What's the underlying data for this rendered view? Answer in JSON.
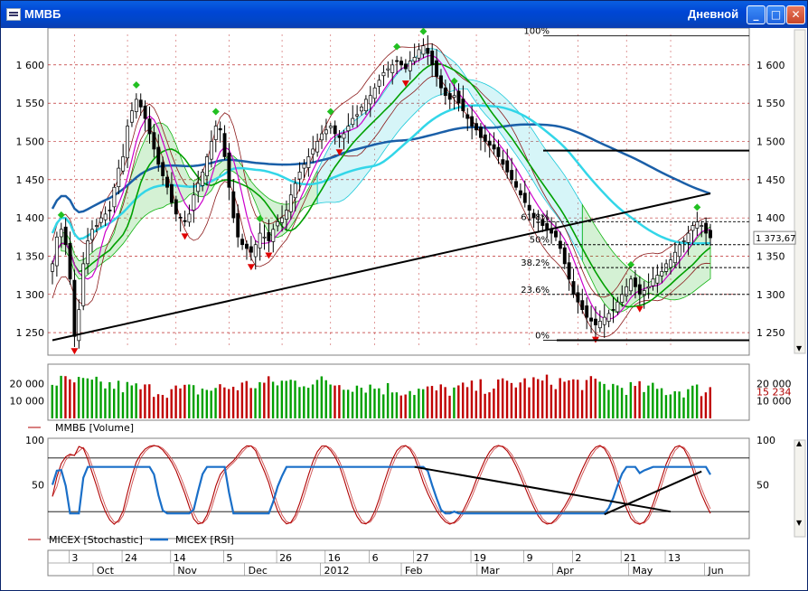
{
  "window": {
    "title": "ММВБ",
    "subtitle": "Дневной",
    "buttons": {
      "minimize": "_",
      "maximize": "□",
      "close": "✕"
    }
  },
  "colors": {
    "grid": "#b00000",
    "bull": "#00a000",
    "bear": "#c00000",
    "ma_dark": "#1a5fa8",
    "ma_light": "#33d6e8",
    "ma_green": "#00a000",
    "magenta": "#cc00cc",
    "cloud_green": "#11b311",
    "cloud_cyan": "#19c9d9",
    "rsi": "#1a6fc8",
    "stoch": "#b00000"
  },
  "chart_data": [
    {
      "panel": "price",
      "type": "candlestick",
      "instrument": "ММВБ",
      "last_value_label": "1 373,67",
      "ylim": [
        1230,
        1640
      ],
      "yticks": [
        1250,
        1300,
        1350,
        1400,
        1450,
        1500,
        1550,
        1600
      ],
      "ytick_labels": [
        "1 250",
        "1 300",
        "1 350",
        "1 400",
        "1 450",
        "1 500",
        "1 550",
        "1 600"
      ],
      "x_count": 150,
      "close": [
        1340,
        1375,
        1385,
        1365,
        1320,
        1245,
        1280,
        1340,
        1370,
        1385,
        1390,
        1400,
        1405,
        1410,
        1440,
        1465,
        1480,
        1520,
        1540,
        1555,
        1545,
        1530,
        1510,
        1490,
        1470,
        1455,
        1440,
        1420,
        1405,
        1400,
        1395,
        1405,
        1430,
        1445,
        1460,
        1480,
        1500,
        1520,
        1515,
        1480,
        1440,
        1400,
        1375,
        1365,
        1360,
        1355,
        1365,
        1380,
        1375,
        1370,
        1385,
        1395,
        1400,
        1410,
        1430,
        1445,
        1460,
        1470,
        1480,
        1490,
        1500,
        1510,
        1515,
        1520,
        1510,
        1505,
        1510,
        1520,
        1530,
        1535,
        1545,
        1555,
        1560,
        1570,
        1580,
        1590,
        1595,
        1600,
        1605,
        1600,
        1595,
        1605,
        1610,
        1620,
        1625,
        1615,
        1600,
        1585,
        1570,
        1560,
        1555,
        1560,
        1550,
        1540,
        1530,
        1520,
        1515,
        1505,
        1500,
        1495,
        1490,
        1480,
        1470,
        1460,
        1450,
        1440,
        1430,
        1420,
        1410,
        1400,
        1395,
        1390,
        1385,
        1380,
        1375,
        1360,
        1340,
        1320,
        1300,
        1290,
        1280,
        1270,
        1265,
        1260,
        1265,
        1270,
        1275,
        1280,
        1290,
        1300,
        1310,
        1320,
        1310,
        1300,
        1305,
        1310,
        1320,
        1325,
        1330,
        1340,
        1345,
        1355,
        1365,
        1370,
        1380,
        1390,
        1395,
        1390,
        1380,
        1374
      ],
      "fib_levels": [
        {
          "label": "100%",
          "value": 1638
        },
        {
          "label": "61.8%",
          "value": 1395
        },
        {
          "label": "50%",
          "value": 1365
        },
        {
          "label": "38.2%",
          "value": 1335
        },
        {
          "label": "23.6%",
          "value": 1300
        },
        {
          "label": "0%",
          "value": 1240
        }
      ],
      "horizontal_lines": [
        1488,
        1240
      ],
      "trendline": {
        "from": [
          0,
          1240
        ],
        "to": [
          149,
          1432
        ]
      }
    },
    {
      "panel": "volume",
      "type": "bar",
      "legend": "ММВБ [Volume]",
      "last_value_label": "15 234",
      "ylim": [
        0,
        30000
      ],
      "yticks": [
        10000,
        20000
      ],
      "ytick_labels": [
        "10 000",
        "20 000"
      ]
    },
    {
      "panel": "oscillator",
      "type": "line",
      "ylim": [
        0,
        100
      ],
      "yticks": [
        50,
        100
      ],
      "ytick_labels": [
        "50",
        "100"
      ],
      "bands": [
        20,
        80
      ],
      "series": [
        {
          "name": "MICEX [Stochastic]",
          "color": "#b00000"
        },
        {
          "name": "MICEX [RSI]",
          "color": "#1a6fc8"
        }
      ],
      "trendlines": [
        {
          "from": [
            82,
            70
          ],
          "to": [
            140,
            20
          ]
        },
        {
          "from": [
            125,
            17
          ],
          "to": [
            147,
            65
          ]
        }
      ]
    }
  ],
  "x_axis": {
    "days": [
      {
        "label": "3",
        "idx": 5
      },
      {
        "label": "24",
        "idx": 17
      },
      {
        "label": "14",
        "idx": 28
      },
      {
        "label": "5",
        "idx": 40
      },
      {
        "label": "26",
        "idx": 52
      },
      {
        "label": "16",
        "idx": 63
      },
      {
        "label": "6",
        "idx": 73
      },
      {
        "label": "27",
        "idx": 83
      },
      {
        "label": "19",
        "idx": 96
      },
      {
        "label": "9",
        "idx": 108
      },
      {
        "label": "2",
        "idx": 119
      },
      {
        "label": "21",
        "idx": 130
      },
      {
        "label": "13",
        "idx": 140
      }
    ],
    "months": [
      {
        "label": "Oct",
        "idx": 5
      },
      {
        "label": "Nov",
        "idx": 21
      },
      {
        "label": "Dec",
        "idx": 35
      },
      {
        "label": "2012",
        "idx": 50
      },
      {
        "label": "Feb",
        "idx": 66
      },
      {
        "label": "Mar",
        "idx": 81
      },
      {
        "label": "Apr",
        "idx": 96
      },
      {
        "label": "May",
        "idx": 111
      },
      {
        "label": "Jun",
        "idx": 126
      }
    ]
  }
}
